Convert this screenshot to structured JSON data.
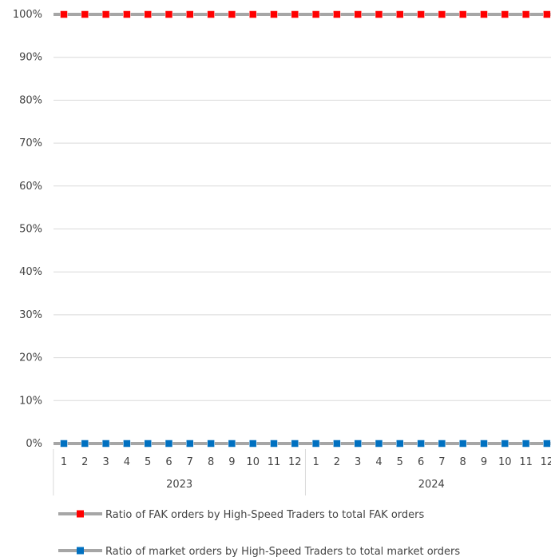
{
  "chart_data": {
    "type": "line",
    "title": "",
    "xlabel": "",
    "ylabel": "",
    "y_tick_labels": [
      "0%",
      "10%",
      "20%",
      "30%",
      "40%",
      "50%",
      "60%",
      "70%",
      "80%",
      "90%",
      "100%"
    ],
    "ylim": [
      0,
      100
    ],
    "grid": true,
    "legend_position": "bottom",
    "year_groups": [
      {
        "label": "2023",
        "months": [
          "1",
          "2",
          "3",
          "4",
          "5",
          "6",
          "7",
          "8",
          "9",
          "10",
          "11",
          "12"
        ]
      },
      {
        "label": "2024",
        "months": [
          "1",
          "2",
          "3",
          "4",
          "5",
          "6",
          "7",
          "8",
          "9",
          "10",
          "11",
          "12"
        ]
      }
    ],
    "series": [
      {
        "name": "Ratio of FAK orders by High-Speed Traders to total FAK orders",
        "line_color": "#a6a6a6",
        "marker_color": "#ff0000",
        "values": [
          100,
          100,
          100,
          100,
          100,
          100,
          100,
          100,
          100,
          100,
          100,
          100,
          100,
          100,
          100,
          100,
          100,
          100,
          100,
          100,
          100,
          100,
          100,
          100
        ]
      },
      {
        "name": "Ratio of market orders by High-Speed Traders to total market orders",
        "line_color": "#a6a6a6",
        "marker_color": "#0070c0",
        "values": [
          0,
          0,
          0,
          0,
          0,
          0,
          0,
          0,
          0,
          0,
          0,
          0,
          0,
          0,
          0,
          0,
          0,
          0,
          0,
          0,
          0,
          0,
          0,
          0
        ]
      }
    ]
  }
}
